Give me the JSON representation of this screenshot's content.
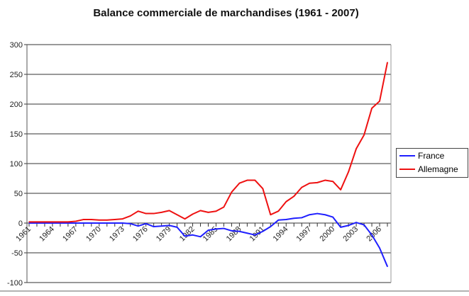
{
  "chart_data": {
    "type": "line",
    "title": "Balance commerciale de marchandises (1961 - 2007)",
    "x": [
      1961,
      1962,
      1963,
      1964,
      1965,
      1966,
      1967,
      1968,
      1969,
      1970,
      1971,
      1972,
      1973,
      1974,
      1975,
      1976,
      1977,
      1978,
      1979,
      1980,
      1981,
      1982,
      1983,
      1984,
      1985,
      1986,
      1987,
      1988,
      1989,
      1990,
      1991,
      1992,
      1993,
      1994,
      1995,
      1996,
      1997,
      1998,
      1999,
      2000,
      2001,
      2002,
      2003,
      2004,
      2005,
      2006,
      2007
    ],
    "x_tick_labels": [
      "1961",
      "1964",
      "1967",
      "1970",
      "1973",
      "1976",
      "1979",
      "1982",
      "1985",
      "1988",
      "1991",
      "1994",
      "1997",
      "2000",
      "2003",
      "2006"
    ],
    "y_tick_labels": [
      "300",
      "250",
      "200",
      "150",
      "100",
      "50",
      "0",
      "-50",
      "-100"
    ],
    "ylim": [
      -100,
      300
    ],
    "grid": true,
    "legend": "right",
    "series": [
      {
        "name": "France",
        "color": "#1f1fff",
        "values": [
          0,
          0,
          0,
          0,
          0,
          0,
          0,
          0,
          0,
          0,
          0,
          0,
          0,
          -1,
          -5,
          -1,
          -6,
          -5,
          -4,
          -7,
          -22,
          -20,
          -23,
          -12,
          -10,
          -9,
          -13,
          -14,
          -17,
          -20,
          -14,
          -6,
          5,
          6,
          8,
          9,
          14,
          16,
          14,
          10,
          -7,
          -4,
          1,
          -3,
          -20,
          -42,
          -73
        ]
      },
      {
        "name": "Allemagne",
        "color": "#ee1111",
        "values": [
          2,
          2,
          2,
          2,
          2,
          2,
          3,
          6,
          6,
          5,
          5,
          6,
          7,
          12,
          20,
          16,
          16,
          18,
          21,
          14,
          7,
          15,
          21,
          18,
          20,
          27,
          52,
          67,
          72,
          72,
          58,
          14,
          20,
          36,
          45,
          60,
          67,
          68,
          72,
          70,
          56,
          86,
          125,
          148,
          193,
          205,
          270
        ]
      }
    ]
  }
}
